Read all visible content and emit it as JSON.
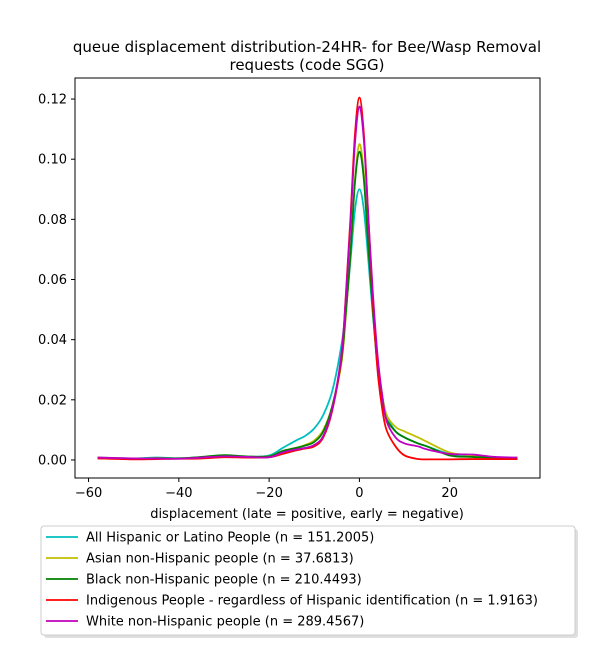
{
  "chart_data": {
    "type": "line",
    "title_line1": "queue displacement distribution-24HR-  for Bee/Wasp Removal",
    "title_line2": "requests (code SGG)",
    "xlabel": "displacement (late = positive, early = negative)",
    "ylabel": "",
    "xlim": [
      -63,
      40
    ],
    "ylim": [
      -0.006,
      0.127
    ],
    "xticks": [
      -60,
      -40,
      -20,
      0,
      20
    ],
    "yticks": [
      0.0,
      0.02,
      0.04,
      0.06,
      0.08,
      0.1,
      0.12
    ],
    "xtick_labels": [
      "−60",
      "−40",
      "−20",
      "0",
      "20"
    ],
    "ytick_labels": [
      "0.00",
      "0.02",
      "0.04",
      "0.06",
      "0.08",
      "0.10",
      "0.12"
    ],
    "grid": false,
    "legend_position": "bottom",
    "series": [
      {
        "name": "All Hispanic or Latino People (n = 151.2005)",
        "color": "#00bfbf",
        "x": [
          -58,
          -50,
          -45,
          -40,
          -35,
          -30,
          -25,
          -20,
          -17,
          -14,
          -12,
          -10,
          -8,
          -6,
          -4,
          -3,
          -2,
          -1,
          0,
          1,
          2,
          3,
          4,
          5,
          6,
          8,
          10,
          13,
          15,
          20,
          25,
          30,
          35
        ],
        "y": [
          0.0008,
          0.0005,
          0.0008,
          0.0006,
          0.0009,
          0.0012,
          0.001,
          0.0015,
          0.004,
          0.0065,
          0.008,
          0.0105,
          0.015,
          0.023,
          0.038,
          0.05,
          0.066,
          0.083,
          0.09,
          0.083,
          0.066,
          0.048,
          0.033,
          0.022,
          0.015,
          0.0095,
          0.0075,
          0.0055,
          0.0045,
          0.002,
          0.0015,
          0.0008,
          0.0005
        ]
      },
      {
        "name": "Asian non-Hispanic people (n = 37.6813)",
        "color": "#bfbf00",
        "x": [
          -58,
          -50,
          -45,
          -40,
          -35,
          -30,
          -25,
          -20,
          -17,
          -14,
          -12,
          -10,
          -8,
          -6,
          -4,
          -3,
          -2,
          -1,
          0,
          1,
          2,
          3,
          4,
          5,
          6,
          8,
          10,
          13,
          15,
          20,
          25,
          30,
          35
        ],
        "y": [
          0.0008,
          0.0004,
          0.0006,
          0.0005,
          0.0008,
          0.0014,
          0.001,
          0.0012,
          0.003,
          0.004,
          0.005,
          0.0065,
          0.01,
          0.018,
          0.032,
          0.048,
          0.068,
          0.093,
          0.105,
          0.095,
          0.072,
          0.051,
          0.034,
          0.022,
          0.015,
          0.011,
          0.0095,
          0.0075,
          0.006,
          0.0025,
          0.0015,
          0.0008,
          0.0005
        ]
      },
      {
        "name": "Black non-Hispanic people (n = 210.4493)",
        "color": "#008000",
        "x": [
          -58,
          -50,
          -45,
          -40,
          -35,
          -30,
          -25,
          -20,
          -17,
          -14,
          -12,
          -10,
          -8,
          -6,
          -4,
          -3,
          -2,
          -1,
          0,
          1,
          2,
          3,
          4,
          5,
          6,
          8,
          10,
          13,
          15,
          20,
          25,
          30,
          35
        ],
        "y": [
          0.0007,
          0.0004,
          0.0006,
          0.0005,
          0.001,
          0.0016,
          0.0012,
          0.0012,
          0.003,
          0.004,
          0.0048,
          0.006,
          0.0095,
          0.018,
          0.033,
          0.049,
          0.068,
          0.092,
          0.1025,
          0.093,
          0.07,
          0.049,
          0.031,
          0.02,
          0.0135,
          0.0095,
          0.0075,
          0.0055,
          0.0045,
          0.0015,
          0.001,
          0.0007,
          0.0005
        ]
      },
      {
        "name": "Indigenous People - regardless of Hispanic identification (n = 1.9163)",
        "color": "#ff0000",
        "x": [
          -58,
          -50,
          -45,
          -40,
          -35,
          -30,
          -25,
          -20,
          -17,
          -14,
          -12,
          -10,
          -8,
          -6,
          -4,
          -3,
          -2,
          -1,
          0,
          1,
          2,
          3,
          4,
          5,
          6,
          8,
          10,
          13,
          15,
          20,
          25,
          30,
          35
        ],
        "y": [
          0.0005,
          0.0002,
          0.0003,
          0.0004,
          0.0005,
          0.0009,
          0.0008,
          0.0009,
          0.002,
          0.0032,
          0.0038,
          0.0045,
          0.0075,
          0.0165,
          0.034,
          0.055,
          0.08,
          0.108,
          0.1205,
          0.108,
          0.08,
          0.052,
          0.03,
          0.0175,
          0.01,
          0.0045,
          0.0015,
          0.0003,
          0.0002,
          0.0002,
          0.0003,
          0.0003,
          0.0003
        ]
      },
      {
        "name": "White non-Hispanic people (n = 289.4567)",
        "color": "#bf00bf",
        "x": [
          -58,
          -50,
          -45,
          -40,
          -35,
          -30,
          -25,
          -20,
          -17,
          -14,
          -12,
          -10,
          -8,
          -6,
          -4,
          -3,
          -2,
          -1,
          0,
          1,
          2,
          3,
          4,
          5,
          6,
          8,
          10,
          13,
          15,
          20,
          25,
          30,
          35
        ],
        "y": [
          0.0008,
          0.0005,
          0.0005,
          0.0004,
          0.0008,
          0.0012,
          0.001,
          0.0009,
          0.0025,
          0.0035,
          0.004,
          0.005,
          0.008,
          0.017,
          0.035,
          0.054,
          0.078,
          0.105,
          0.1175,
          0.106,
          0.08,
          0.055,
          0.035,
          0.022,
          0.013,
          0.0075,
          0.0055,
          0.0045,
          0.0035,
          0.002,
          0.0018,
          0.001,
          0.0008
        ]
      }
    ]
  }
}
